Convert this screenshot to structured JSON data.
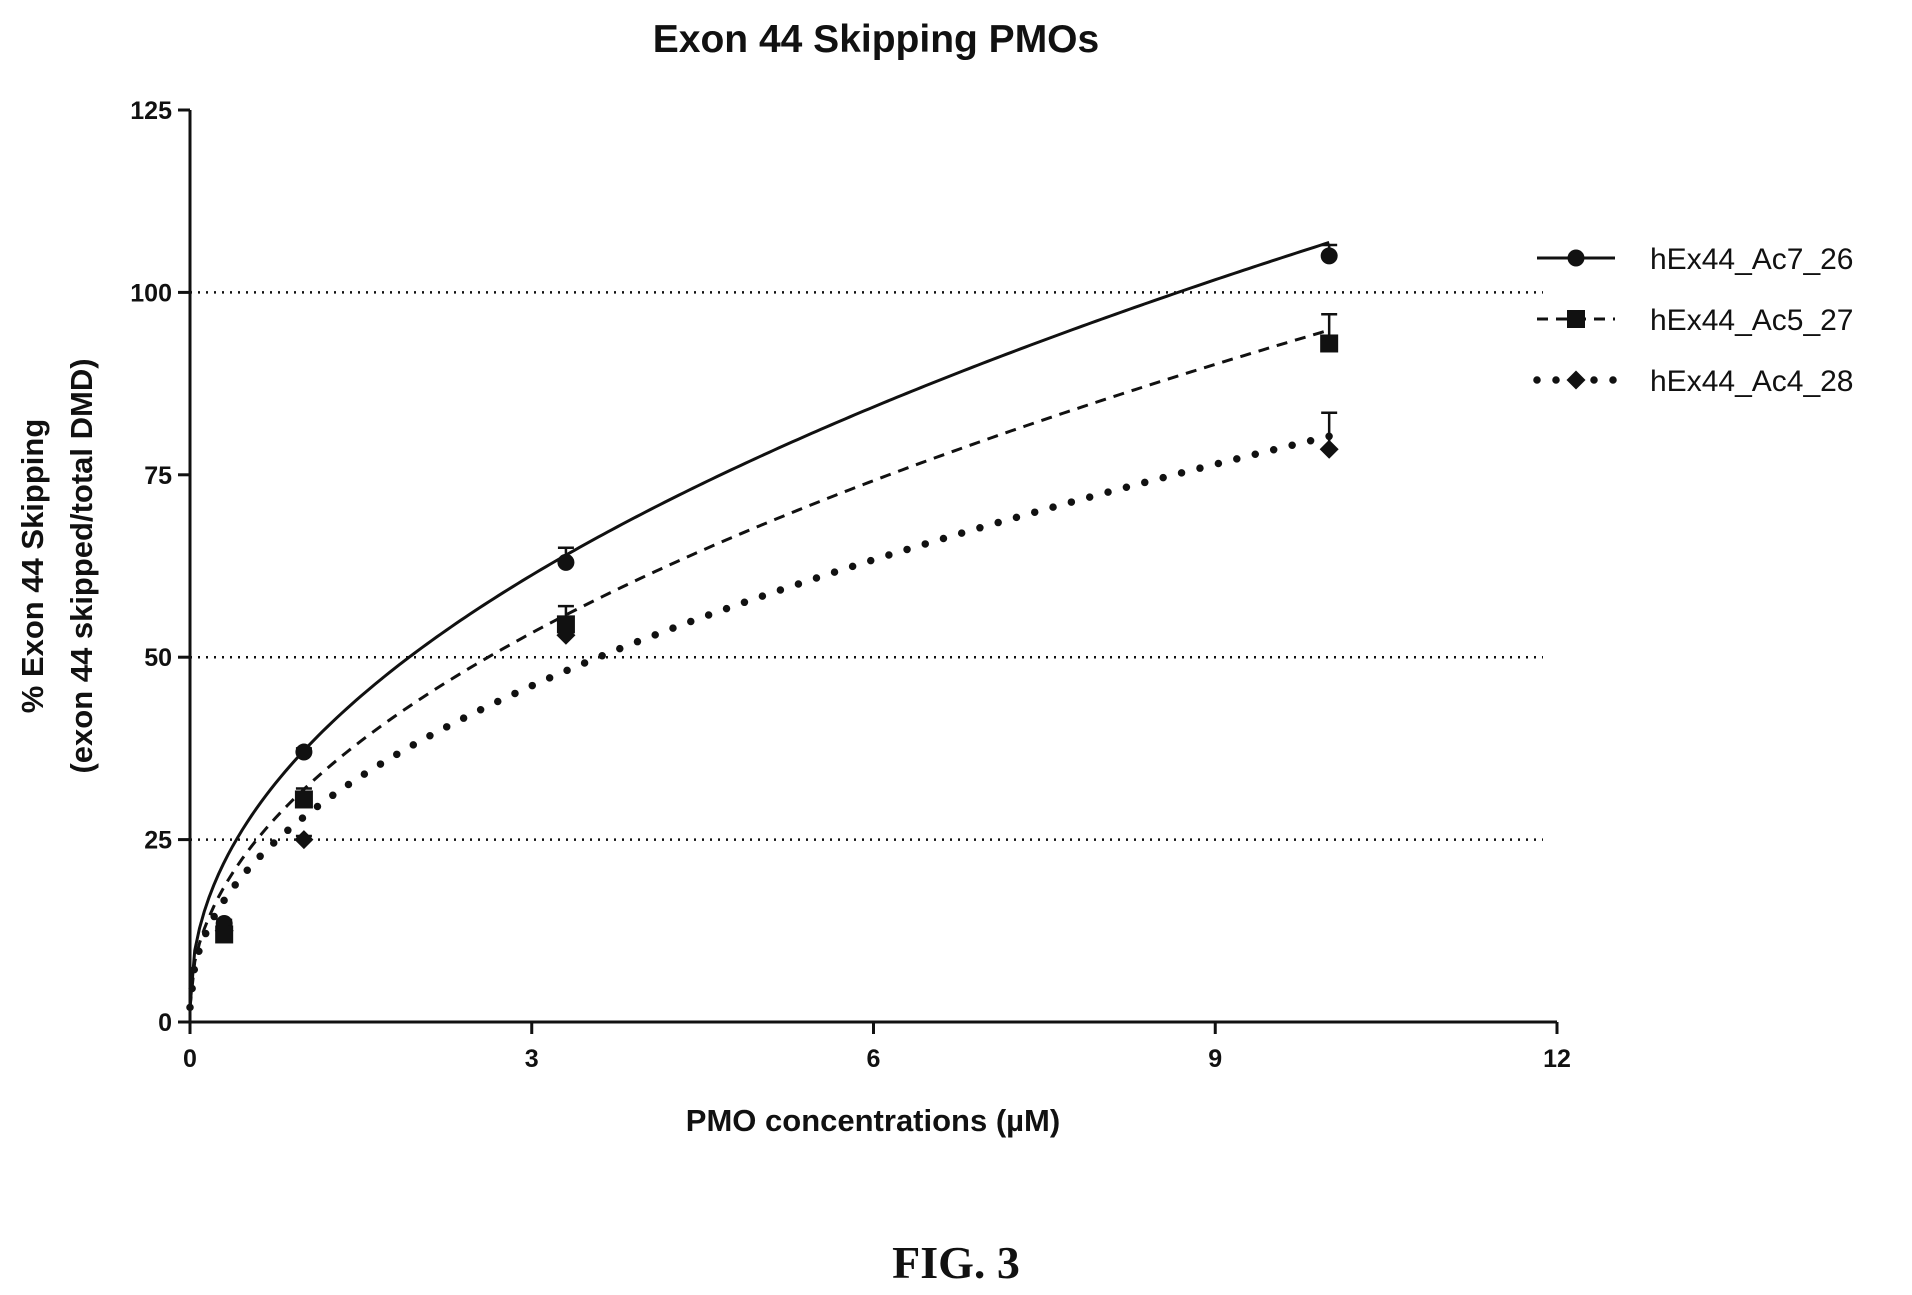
{
  "chart_data": {
    "type": "line",
    "title": "Exon 44 Skipping PMOs",
    "xlabel": "PMO concentrations (µM)",
    "ylabel_line1": "% Exon 44 Skipping",
    "ylabel_line2": "(exon 44 skipped/total DMD)",
    "xlim": [
      0,
      12
    ],
    "ylim": [
      0,
      125
    ],
    "xticks": [
      0,
      3,
      6,
      9,
      12
    ],
    "yticks": [
      0,
      25,
      50,
      75,
      100,
      125
    ],
    "reference_lines": [
      25,
      50,
      100
    ],
    "legend_position": "right",
    "series": [
      {
        "name": "hEx44_Ac7_26",
        "marker": "circle",
        "line_style": "solid",
        "x": [
          0.3,
          1,
          3.3,
          10
        ],
        "y": [
          13.5,
          37,
          63,
          105
        ],
        "error": [
          0.5,
          0.5,
          2,
          1.5
        ],
        "curve": {
          "a": 35.2,
          "b": 0.474
        }
      },
      {
        "name": "hEx44_Ac5_27",
        "marker": "square",
        "line_style": "dashed",
        "x": [
          0.3,
          1,
          3.3,
          10
        ],
        "y": [
          12,
          30.5,
          54.5,
          93
        ],
        "error": [
          1,
          1.5,
          2.5,
          4
        ],
        "curve": {
          "a": 29.9,
          "b": 0.492
        }
      },
      {
        "name": "hEx44_Ac4_28",
        "marker": "diamond",
        "line_style": "dotted",
        "x": [
          0.3,
          1,
          3.3,
          10
        ],
        "y": [
          12.5,
          25,
          53,
          78.5
        ],
        "error": [
          0.5,
          0.5,
          1,
          5
        ],
        "curve": {
          "a": 26.1,
          "b": 0.477
        }
      }
    ]
  },
  "figure_caption": "FIG. 3"
}
